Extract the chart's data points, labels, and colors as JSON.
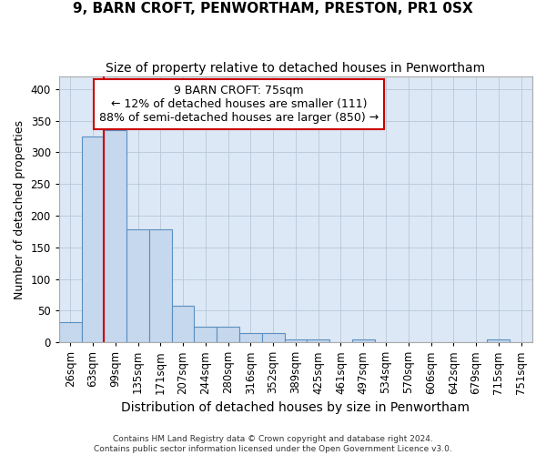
{
  "title": "9, BARN CROFT, PENWORTHAM, PRESTON, PR1 0SX",
  "subtitle": "Size of property relative to detached houses in Penwortham",
  "xlabel": "Distribution of detached houses by size in Penwortham",
  "ylabel": "Number of detached properties",
  "footer_line1": "Contains HM Land Registry data © Crown copyright and database right 2024.",
  "footer_line2": "Contains public sector information licensed under the Open Government Licence v3.0.",
  "bar_labels": [
    "26sqm",
    "63sqm",
    "99sqm",
    "135sqm",
    "171sqm",
    "207sqm",
    "244sqm",
    "280sqm",
    "316sqm",
    "352sqm",
    "389sqm",
    "425sqm",
    "461sqm",
    "497sqm",
    "534sqm",
    "570sqm",
    "606sqm",
    "642sqm",
    "679sqm",
    "715sqm",
    "751sqm"
  ],
  "bar_values": [
    31,
    325,
    335,
    178,
    178,
    57,
    24,
    24,
    14,
    14,
    5,
    5,
    0,
    4,
    0,
    0,
    0,
    0,
    0,
    4,
    0
  ],
  "bar_color": "#c5d8ed",
  "bar_edge_color": "#5a8fc0",
  "background_color": "#dce8f5",
  "grid_color": "#b8c8d8",
  "annotation_box_text": "9 BARN CROFT: 75sqm\n← 12% of detached houses are smaller (111)\n88% of semi-detached houses are larger (850) →",
  "annotation_box_color": "#ffffff",
  "annotation_box_edge_color": "#cc0000",
  "redline_x": 1.5,
  "redline_color": "#cc0000",
  "ylim": [
    0,
    420
  ],
  "yticks": [
    0,
    50,
    100,
    150,
    200,
    250,
    300,
    350,
    400
  ],
  "title_fontsize": 11,
  "subtitle_fontsize": 10,
  "xlabel_fontsize": 10,
  "ylabel_fontsize": 9,
  "tick_fontsize": 8.5,
  "annot_fontsize": 9
}
